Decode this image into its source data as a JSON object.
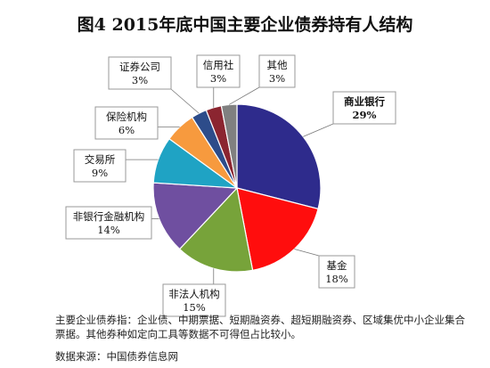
{
  "chart_data": {
    "type": "pie",
    "title": "图4  2015年底中国主要企业债券持有人结构",
    "slices": [
      {
        "label": "商业银行",
        "value": 29,
        "display": "29%",
        "color": "#2E2B8C",
        "bold": true
      },
      {
        "label": "基金",
        "value": 18,
        "display": "18%",
        "color": "#FF0D0D",
        "bold": false
      },
      {
        "label": "非法人机构",
        "value": 15,
        "display": "15%",
        "color": "#77A33A",
        "bold": false
      },
      {
        "label": "非银行金融机构",
        "value": 14,
        "display": "14%",
        "color": "#6F4FA0",
        "bold": false
      },
      {
        "label": "交易所",
        "value": 9,
        "display": "9%",
        "color": "#1FA3C4",
        "bold": false
      },
      {
        "label": "保险机构",
        "value": 6,
        "display": "6%",
        "color": "#F79A3E",
        "bold": false
      },
      {
        "label": "证券公司",
        "value": 3,
        "display": "3%",
        "color": "#2D4C8A",
        "bold": false
      },
      {
        "label": "信用社",
        "value": 3,
        "display": "3%",
        "color": "#8B2530",
        "bold": false
      },
      {
        "label": "其他",
        "value": 3,
        "display": "3%",
        "color": "#808080",
        "bold": false
      }
    ]
  },
  "note": "主要企业债券指：企业债、中期票据、短期融资券、超短期融资券、区域集优中小企业集合票据。其他券种如定向工具等数据不可得但占比较小。",
  "source": "数据来源：中国债券信息网"
}
